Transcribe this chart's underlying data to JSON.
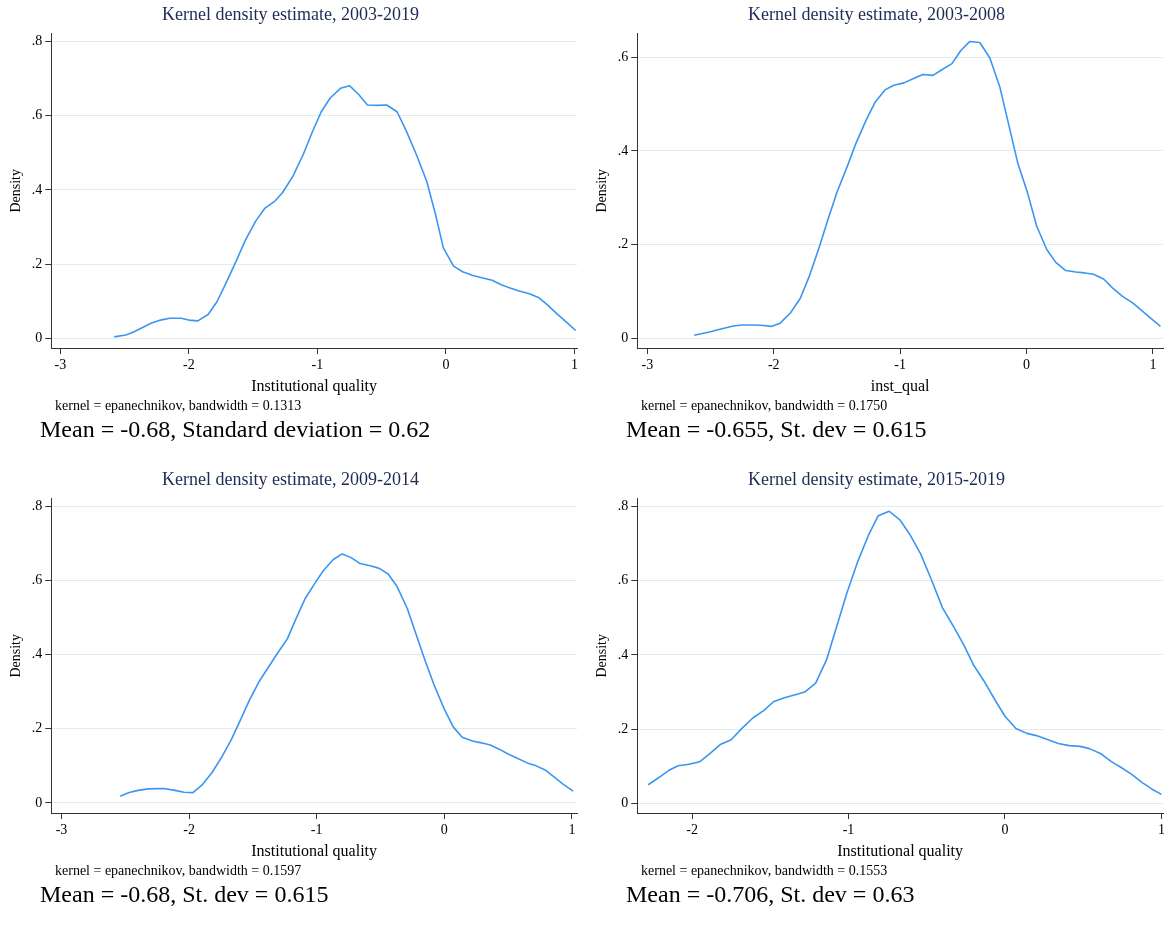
{
  "chart_data": [
    {
      "type": "line",
      "title": "Kernel density estimate, 2003-2019",
      "xlabel": "Institutional quality",
      "ylabel": "Density",
      "color": "#3a96f0",
      "grid": "y",
      "marker": "none",
      "xlim": [
        -3.07,
        1.02
      ],
      "xticks": [
        -3,
        -2,
        -1,
        0,
        1
      ],
      "ylim": [
        -0.025,
        0.82
      ],
      "yticks": [
        {
          "value": 0,
          "label": "0"
        },
        {
          "value": 0.2,
          "label": ".2"
        },
        {
          "value": 0.4,
          "label": ".4"
        },
        {
          "value": 0.6,
          "label": ".6"
        },
        {
          "value": 0.8,
          "label": ".8"
        }
      ],
      "x": [
        -2.58,
        -2.49,
        -2.43,
        -2.29,
        -2.22,
        -2.15,
        -2.06,
        -2.0,
        -1.93,
        -1.85,
        -1.78,
        -1.71,
        -1.63,
        -1.56,
        -1.48,
        -1.41,
        -1.33,
        -1.27,
        -1.19,
        -1.11,
        -1.04,
        -0.97,
        -0.9,
        -0.82,
        -0.75,
        -0.68,
        -0.61,
        -0.53,
        -0.46,
        -0.38,
        -0.31,
        -0.23,
        -0.15,
        -0.08,
        -0.02,
        0.06,
        0.13,
        0.21,
        0.28,
        0.36,
        0.43,
        0.5,
        0.57,
        0.65,
        0.72,
        0.79,
        0.86,
        0.94,
        1.01
      ],
      "values": [
        0.005,
        0.01,
        0.018,
        0.042,
        0.05,
        0.055,
        0.055,
        0.05,
        0.048,
        0.065,
        0.1,
        0.15,
        0.21,
        0.265,
        0.316,
        0.35,
        0.37,
        0.393,
        0.437,
        0.495,
        0.555,
        0.61,
        0.647,
        0.673,
        0.68,
        0.657,
        0.628,
        0.627,
        0.628,
        0.61,
        0.56,
        0.495,
        0.424,
        0.333,
        0.244,
        0.195,
        0.18,
        0.17,
        0.164,
        0.157,
        0.145,
        0.136,
        0.128,
        0.121,
        0.111,
        0.091,
        0.068,
        0.044,
        0.022
      ],
      "annotations": [
        "kernel = epanechnikov, bandwidth = 0.1313",
        "Mean = -0.68, Standard deviation = 0.62"
      ]
    },
    {
      "type": "line",
      "title": "Kernel density estimate, 2003-2008",
      "xlabel": "inst_qual",
      "ylabel": "Density",
      "color": "#3a96f0",
      "grid": "y",
      "marker": "none",
      "xlim": [
        -3.08,
        1.08
      ],
      "xticks": [
        -3,
        -2,
        -1,
        0,
        1
      ],
      "ylim": [
        -0.02,
        0.65
      ],
      "yticks": [
        {
          "value": 0,
          "label": "0"
        },
        {
          "value": 0.2,
          "label": ".2"
        },
        {
          "value": 0.4,
          "label": ".4"
        },
        {
          "value": 0.6,
          "label": ".6"
        }
      ],
      "x": [
        -2.63,
        -2.51,
        -2.41,
        -2.32,
        -2.25,
        -2.16,
        -2.08,
        -2.02,
        -1.95,
        -1.87,
        -1.79,
        -1.72,
        -1.64,
        -1.57,
        -1.5,
        -1.42,
        -1.35,
        -1.27,
        -1.2,
        -1.12,
        -1.05,
        -0.97,
        -0.89,
        -0.82,
        -0.74,
        -0.67,
        -0.59,
        -0.52,
        -0.45,
        -0.37,
        -0.29,
        -0.21,
        -0.14,
        -0.07,
        0.01,
        0.08,
        0.16,
        0.23,
        0.31,
        0.39,
        0.46,
        0.53,
        0.61,
        0.68,
        0.76,
        0.84,
        0.91,
        0.98,
        1.06
      ],
      "values": [
        0.007,
        0.014,
        0.021,
        0.027,
        0.029,
        0.029,
        0.028,
        0.026,
        0.033,
        0.054,
        0.086,
        0.132,
        0.195,
        0.255,
        0.312,
        0.366,
        0.416,
        0.465,
        0.503,
        0.53,
        0.54,
        0.545,
        0.555,
        0.563,
        0.561,
        0.573,
        0.586,
        0.614,
        0.633,
        0.631,
        0.598,
        0.535,
        0.455,
        0.375,
        0.309,
        0.24,
        0.19,
        0.163,
        0.145,
        0.142,
        0.14,
        0.137,
        0.127,
        0.108,
        0.09,
        0.076,
        0.06,
        0.044,
        0.026
      ],
      "annotations": [
        "kernel = epanechnikov, bandwidth = 0.1750",
        "Mean = -0.655, St. dev = 0.615"
      ]
    },
    {
      "type": "line",
      "title": "Kernel density estimate, 2009-2014",
      "xlabel": "Institutional quality",
      "ylabel": "Density",
      "color": "#3a96f0",
      "grid": "y",
      "marker": "none",
      "xlim": [
        -3.08,
        1.04
      ],
      "xticks": [
        -3,
        -2,
        -1,
        0,
        1
      ],
      "ylim": [
        -0.027,
        0.82
      ],
      "yticks": [
        {
          "value": 0,
          "label": "0"
        },
        {
          "value": 0.2,
          "label": ".2"
        },
        {
          "value": 0.4,
          "label": ".4"
        },
        {
          "value": 0.6,
          "label": ".6"
        },
        {
          "value": 0.8,
          "label": ".8"
        }
      ],
      "x": [
        -2.54,
        -2.47,
        -2.4,
        -2.32,
        -2.2,
        -2.11,
        -2.04,
        -1.97,
        -1.9,
        -1.82,
        -1.74,
        -1.67,
        -1.6,
        -1.53,
        -1.45,
        -1.38,
        -1.31,
        -1.23,
        -1.16,
        -1.09,
        -1.02,
        -0.95,
        -0.87,
        -0.8,
        -0.73,
        -0.66,
        -0.58,
        -0.51,
        -0.44,
        -0.37,
        -0.29,
        -0.22,
        -0.15,
        -0.08,
        0.0,
        0.07,
        0.14,
        0.22,
        0.29,
        0.36,
        0.43,
        0.5,
        0.58,
        0.65,
        0.72,
        0.79,
        0.86,
        0.93,
        1.01
      ],
      "values": [
        0.018,
        0.028,
        0.034,
        0.038,
        0.039,
        0.034,
        0.029,
        0.028,
        0.048,
        0.082,
        0.126,
        0.17,
        0.222,
        0.275,
        0.328,
        0.365,
        0.402,
        0.442,
        0.498,
        0.551,
        0.589,
        0.625,
        0.656,
        0.671,
        0.661,
        0.645,
        0.639,
        0.632,
        0.617,
        0.583,
        0.524,
        0.453,
        0.383,
        0.318,
        0.253,
        0.205,
        0.177,
        0.167,
        0.162,
        0.156,
        0.145,
        0.132,
        0.119,
        0.108,
        0.1,
        0.089,
        0.07,
        0.051,
        0.032
      ],
      "annotations": [
        "kernel = epanechnikov, bandwidth = 0.1597",
        "Mean = -0.68, St. dev = 0.615"
      ]
    },
    {
      "type": "line",
      "title": "Kernel density estimate, 2015-2019",
      "xlabel": "Institutional quality",
      "ylabel": "Density",
      "color": "#3a96f0",
      "grid": "y",
      "marker": "none",
      "xlim": [
        -2.35,
        1.01
      ],
      "xticks": [
        -2,
        -1,
        0,
        1
      ],
      "ylim": [
        -0.025,
        0.82
      ],
      "yticks": [
        {
          "value": 0,
          "label": "0"
        },
        {
          "value": 0.2,
          "label": ".2"
        },
        {
          "value": 0.4,
          "label": ".4"
        },
        {
          "value": 0.6,
          "label": ".6"
        },
        {
          "value": 0.8,
          "label": ".8"
        }
      ],
      "x": [
        -2.28,
        -2.21,
        -2.15,
        -2.09,
        -2.02,
        -1.95,
        -1.89,
        -1.82,
        -1.75,
        -1.68,
        -1.61,
        -1.54,
        -1.48,
        -1.41,
        -1.34,
        -1.28,
        -1.21,
        -1.14,
        -1.08,
        -1.01,
        -0.94,
        -0.87,
        -0.81,
        -0.74,
        -0.67,
        -0.61,
        -0.54,
        -0.47,
        -0.4,
        -0.33,
        -0.26,
        -0.2,
        -0.13,
        -0.06,
        0.0,
        0.07,
        0.14,
        0.2,
        0.28,
        0.34,
        0.41,
        0.48,
        0.54,
        0.61,
        0.68,
        0.74,
        0.81,
        0.88,
        0.94,
        1.0
      ],
      "values": [
        0.051,
        0.071,
        0.089,
        0.102,
        0.106,
        0.113,
        0.133,
        0.159,
        0.172,
        0.203,
        0.231,
        0.251,
        0.274,
        0.285,
        0.293,
        0.3,
        0.324,
        0.387,
        0.47,
        0.567,
        0.652,
        0.724,
        0.774,
        0.786,
        0.762,
        0.725,
        0.672,
        0.602,
        0.527,
        0.477,
        0.424,
        0.372,
        0.327,
        0.276,
        0.235,
        0.202,
        0.189,
        0.183,
        0.171,
        0.162,
        0.156,
        0.154,
        0.148,
        0.135,
        0.113,
        0.098,
        0.079,
        0.056,
        0.039,
        0.025
      ],
      "annotations": [
        "kernel = epanechnikov, bandwidth = 0.1553",
        "Mean = -0.706, St. dev = 0.63"
      ]
    }
  ]
}
